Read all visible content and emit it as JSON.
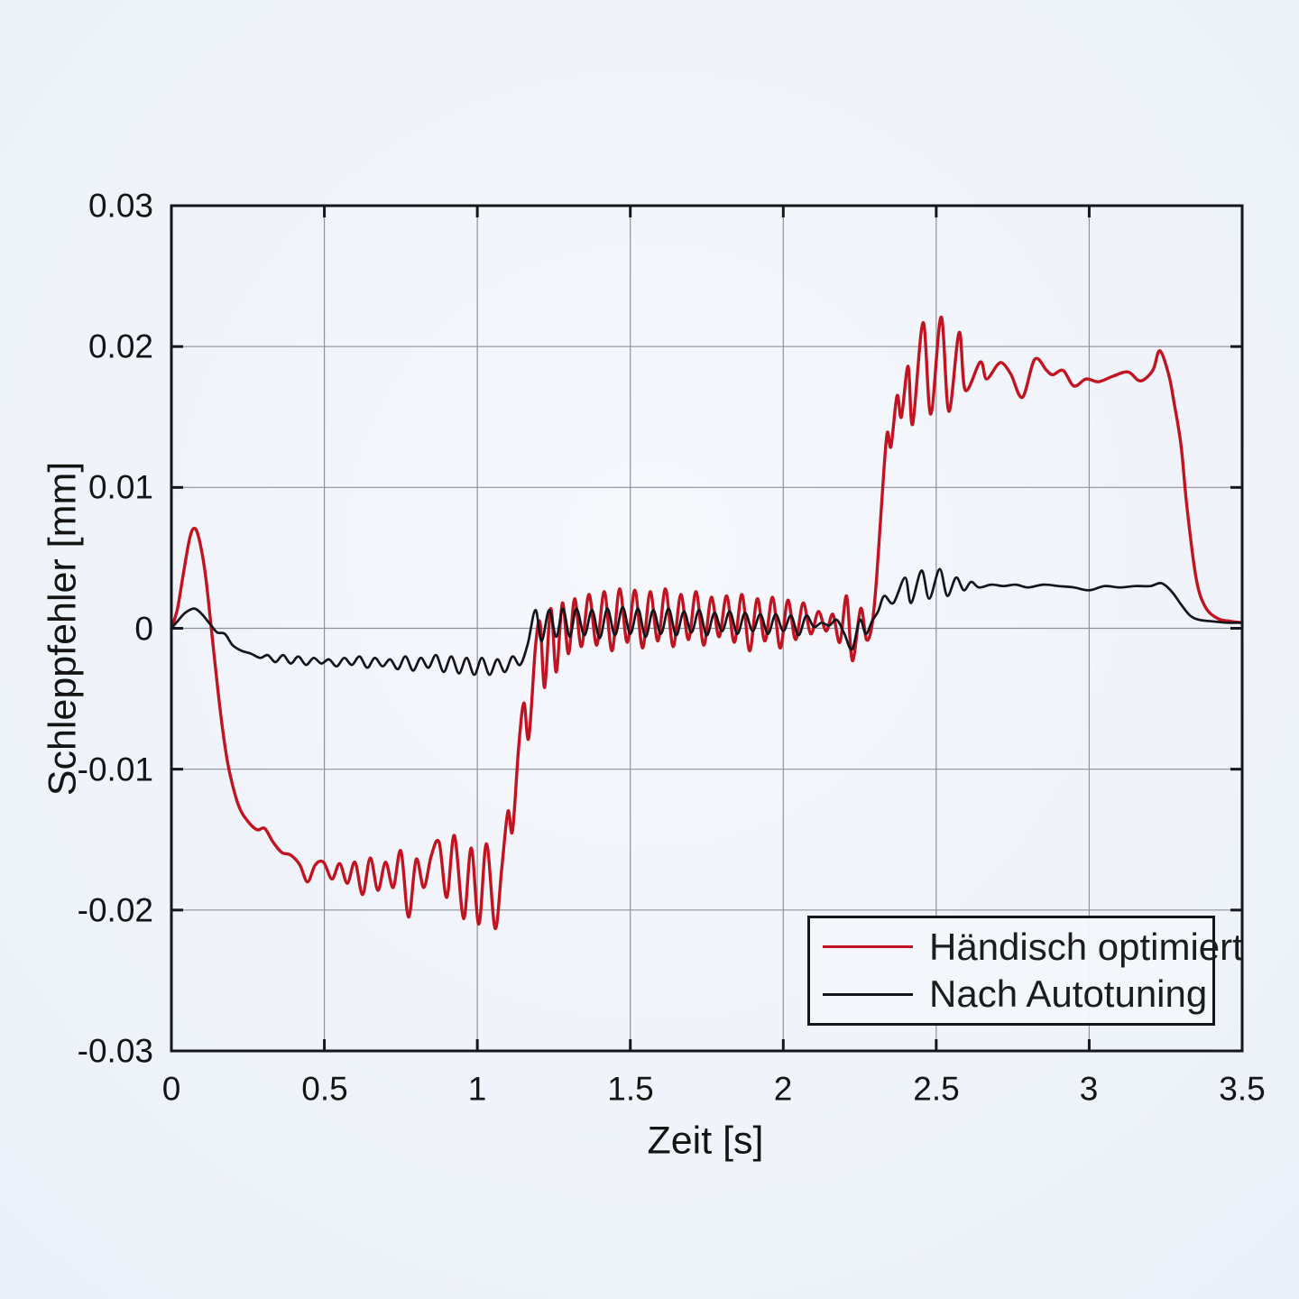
{
  "chart_data": {
    "type": "line",
    "title": "",
    "xlabel": "Zeit [s]",
    "ylabel": "Schleppfehler [mm]",
    "xlim": [
      0,
      3.5
    ],
    "ylim": [
      -0.03,
      0.03
    ],
    "xticks": [
      0,
      0.5,
      1,
      1.5,
      2,
      2.5,
      3,
      3.5
    ],
    "xtick_labels": [
      "0",
      "0.5",
      "1",
      "1.5",
      "2",
      "2.5",
      "3",
      "3.5"
    ],
    "yticks": [
      0.03,
      0.02,
      0.01,
      0,
      -0.01,
      -0.02,
      -0.03
    ],
    "ytick_labels": [
      "0.03",
      "0.02",
      "0.01",
      "0",
      "-0.01",
      "-0.02",
      "-0.03"
    ],
    "grid": true,
    "legend_position": "bottom-right",
    "axis_color": "#16161b",
    "grid_color": "#8d939c",
    "series": [
      {
        "name": "Händisch optimiert",
        "color": "#c11320",
        "points": [
          [
            0,
            0
          ],
          [
            0.02,
            0.0014
          ],
          [
            0.04,
            0.004
          ],
          [
            0.06,
            0.0064
          ],
          [
            0.075,
            0.0071
          ],
          [
            0.09,
            0.0064
          ],
          [
            0.11,
            0.004
          ],
          [
            0.13,
            0.0001
          ],
          [
            0.15,
            -0.004
          ],
          [
            0.17,
            -0.0076
          ],
          [
            0.19,
            -0.0102
          ],
          [
            0.22,
            -0.0126
          ],
          [
            0.25,
            -0.0137
          ],
          [
            0.28,
            -0.0143
          ],
          [
            0.305,
            -0.0142
          ],
          [
            0.33,
            -0.0151
          ],
          [
            0.36,
            -0.0159
          ],
          [
            0.39,
            -0.0161
          ],
          [
            0.42,
            -0.0168
          ],
          [
            0.445,
            -0.018
          ],
          [
            0.47,
            -0.0168
          ],
          [
            0.497,
            -0.0166
          ],
          [
            0.525,
            -0.0178
          ],
          [
            0.55,
            -0.0167
          ],
          [
            0.575,
            -0.0181
          ],
          [
            0.6,
            -0.0166
          ],
          [
            0.625,
            -0.0189
          ],
          [
            0.65,
            -0.0163
          ],
          [
            0.675,
            -0.0186
          ],
          [
            0.7,
            -0.0166
          ],
          [
            0.725,
            -0.0184
          ],
          [
            0.75,
            -0.0158
          ],
          [
            0.775,
            -0.0205
          ],
          [
            0.8,
            -0.0164
          ],
          [
            0.825,
            -0.0184
          ],
          [
            0.85,
            -0.0161
          ],
          [
            0.875,
            -0.0152
          ],
          [
            0.9,
            -0.0191
          ],
          [
            0.925,
            -0.0147
          ],
          [
            0.955,
            -0.0206
          ],
          [
            0.98,
            -0.0156
          ],
          [
            1.005,
            -0.021
          ],
          [
            1.03,
            -0.0153
          ],
          [
            1.058,
            -0.0213
          ],
          [
            1.08,
            -0.017
          ],
          [
            1.1,
            -0.013
          ],
          [
            1.115,
            -0.0144
          ],
          [
            1.135,
            -0.0085
          ],
          [
            1.152,
            -0.0053
          ],
          [
            1.168,
            -0.0078
          ],
          [
            1.19,
            -0.0013
          ],
          [
            1.205,
            0.0004
          ],
          [
            1.22,
            -0.0042
          ],
          [
            1.24,
            0.0014
          ],
          [
            1.258,
            -0.0031
          ],
          [
            1.278,
            0.0018
          ],
          [
            1.298,
            -0.0018
          ],
          [
            1.318,
            0.0021
          ],
          [
            1.34,
            -0.0013
          ],
          [
            1.365,
            0.0024
          ],
          [
            1.39,
            -0.0012
          ],
          [
            1.415,
            0.0026
          ],
          [
            1.44,
            -0.0016
          ],
          [
            1.465,
            0.0028
          ],
          [
            1.49,
            -0.001
          ],
          [
            1.515,
            0.0027
          ],
          [
            1.54,
            -0.0014
          ],
          [
            1.565,
            0.0026
          ],
          [
            1.59,
            -0.0009
          ],
          [
            1.615,
            0.0028
          ],
          [
            1.64,
            -0.0013
          ],
          [
            1.665,
            0.0024
          ],
          [
            1.69,
            -0.0008
          ],
          [
            1.715,
            0.0026
          ],
          [
            1.74,
            -0.0012
          ],
          [
            1.765,
            0.0022
          ],
          [
            1.79,
            -0.0006
          ],
          [
            1.815,
            0.0023
          ],
          [
            1.84,
            -0.001
          ],
          [
            1.865,
            0.0024
          ],
          [
            1.89,
            -0.0016
          ],
          [
            1.915,
            0.0021
          ],
          [
            1.94,
            -0.0009
          ],
          [
            1.965,
            0.0022
          ],
          [
            1.99,
            -0.0014
          ],
          [
            2.015,
            0.002
          ],
          [
            2.04,
            -0.0008
          ],
          [
            2.065,
            0.0018
          ],
          [
            2.09,
            -0.0004
          ],
          [
            2.115,
            0.0012
          ],
          [
            2.14,
            -0.0002
          ],
          [
            2.162,
            0.001
          ],
          [
            2.185,
            -0.001
          ],
          [
            2.207,
            0.0023
          ],
          [
            2.226,
            -0.0023
          ],
          [
            2.253,
            0.0014
          ],
          [
            2.272,
            -0.0008
          ],
          [
            2.29,
            0.0002
          ],
          [
            2.305,
            0.0035
          ],
          [
            2.322,
            0.009
          ],
          [
            2.339,
            0.0138
          ],
          [
            2.352,
            0.0129
          ],
          [
            2.372,
            0.0165
          ],
          [
            2.386,
            0.015
          ],
          [
            2.408,
            0.0186
          ],
          [
            2.423,
            0.0145
          ],
          [
            2.457,
            0.0217
          ],
          [
            2.482,
            0.0152
          ],
          [
            2.516,
            0.0221
          ],
          [
            2.541,
            0.0154
          ],
          [
            2.575,
            0.021
          ],
          [
            2.595,
            0.0169
          ],
          [
            2.644,
            0.0189
          ],
          [
            2.664,
            0.0177
          ],
          [
            2.7,
            0.0187
          ],
          [
            2.718,
            0.0188
          ],
          [
            2.745,
            0.018
          ],
          [
            2.782,
            0.0164
          ],
          [
            2.822,
            0.0191
          ],
          [
            2.861,
            0.0183
          ],
          [
            2.881,
            0.018
          ],
          [
            2.915,
            0.0183
          ],
          [
            2.95,
            0.0172
          ],
          [
            2.99,
            0.0177
          ],
          [
            3.03,
            0.0175
          ],
          [
            3.078,
            0.0179
          ],
          [
            3.127,
            0.0182
          ],
          [
            3.16,
            0.0176
          ],
          [
            3.182,
            0.0177
          ],
          [
            3.21,
            0.0184
          ],
          [
            3.231,
            0.0197
          ],
          [
            3.26,
            0.018
          ],
          [
            3.276,
            0.0162
          ],
          [
            3.3,
            0.013
          ],
          [
            3.32,
            0.0085
          ],
          [
            3.35,
            0.0035
          ],
          [
            3.38,
            0.0015
          ],
          [
            3.42,
            0.0007
          ],
          [
            3.46,
            0.0005
          ],
          [
            3.5,
            0.0004
          ]
        ]
      },
      {
        "name": "Nach Autotuning",
        "color": "#14141a",
        "points": [
          [
            0,
            0
          ],
          [
            0.02,
            0.0005
          ],
          [
            0.045,
            0.0011
          ],
          [
            0.075,
            0.0014
          ],
          [
            0.1,
            0.001
          ],
          [
            0.13,
            0.0002
          ],
          [
            0.15,
            -0.0003
          ],
          [
            0.175,
            -0.0004
          ],
          [
            0.2,
            -0.0012
          ],
          [
            0.23,
            -0.0016
          ],
          [
            0.26,
            -0.0018
          ],
          [
            0.29,
            -0.0021
          ],
          [
            0.315,
            -0.0019
          ],
          [
            0.34,
            -0.0024
          ],
          [
            0.365,
            -0.0019
          ],
          [
            0.39,
            -0.0025
          ],
          [
            0.415,
            -0.002
          ],
          [
            0.44,
            -0.0026
          ],
          [
            0.465,
            -0.0021
          ],
          [
            0.49,
            -0.0025
          ],
          [
            0.515,
            -0.0022
          ],
          [
            0.54,
            -0.0027
          ],
          [
            0.565,
            -0.0021
          ],
          [
            0.59,
            -0.0026
          ],
          [
            0.615,
            -0.002
          ],
          [
            0.64,
            -0.0028
          ],
          [
            0.665,
            -0.0021
          ],
          [
            0.69,
            -0.0027
          ],
          [
            0.715,
            -0.0022
          ],
          [
            0.74,
            -0.0029
          ],
          [
            0.765,
            -0.002
          ],
          [
            0.79,
            -0.003
          ],
          [
            0.815,
            -0.0021
          ],
          [
            0.84,
            -0.0028
          ],
          [
            0.865,
            -0.0019
          ],
          [
            0.89,
            -0.0031
          ],
          [
            0.915,
            -0.002
          ],
          [
            0.94,
            -0.0032
          ],
          [
            0.965,
            -0.0021
          ],
          [
            0.99,
            -0.0033
          ],
          [
            1.015,
            -0.0021
          ],
          [
            1.04,
            -0.0033
          ],
          [
            1.065,
            -0.0022
          ],
          [
            1.09,
            -0.0031
          ],
          [
            1.115,
            -0.002
          ],
          [
            1.14,
            -0.0026
          ],
          [
            1.165,
            -0.0011
          ],
          [
            1.19,
            0.0013
          ],
          [
            1.21,
            -0.0009
          ],
          [
            1.235,
            0.0013
          ],
          [
            1.258,
            -0.0006
          ],
          [
            1.28,
            0.0014
          ],
          [
            1.302,
            -0.0006
          ],
          [
            1.324,
            0.0014
          ],
          [
            1.35,
            -0.0005
          ],
          [
            1.375,
            0.0013
          ],
          [
            1.4,
            -0.0007
          ],
          [
            1.425,
            0.0014
          ],
          [
            1.45,
            -0.0005
          ],
          [
            1.475,
            0.0015
          ],
          [
            1.5,
            -0.0004
          ],
          [
            1.525,
            0.0014
          ],
          [
            1.55,
            -0.0006
          ],
          [
            1.575,
            0.0013
          ],
          [
            1.6,
            -0.0004
          ],
          [
            1.625,
            0.0014
          ],
          [
            1.65,
            -0.0005
          ],
          [
            1.675,
            0.0012
          ],
          [
            1.7,
            -0.0003
          ],
          [
            1.725,
            0.0013
          ],
          [
            1.75,
            -0.0005
          ],
          [
            1.775,
            0.0011
          ],
          [
            1.8,
            -0.0002
          ],
          [
            1.825,
            0.0012
          ],
          [
            1.85,
            -0.0004
          ],
          [
            1.875,
            0.0011
          ],
          [
            1.9,
            -0.0002
          ],
          [
            1.925,
            0.001
          ],
          [
            1.95,
            -0.0004
          ],
          [
            1.975,
            0.001
          ],
          [
            2.0,
            -0.0002
          ],
          [
            2.025,
            0.0009
          ],
          [
            2.05,
            -0.0005
          ],
          [
            2.075,
            0.0009
          ],
          [
            2.1,
            0.0001
          ],
          [
            2.125,
            0.0004
          ],
          [
            2.15,
            0.0002
          ],
          [
            2.175,
            0.0006
          ],
          [
            2.2,
            -0.0004
          ],
          [
            2.225,
            -0.0015
          ],
          [
            2.25,
            0.0006
          ],
          [
            2.27,
            -0.0004
          ],
          [
            2.29,
            0.0005
          ],
          [
            2.31,
            0.0012
          ],
          [
            2.33,
            0.0023
          ],
          [
            2.36,
            0.0018
          ],
          [
            2.398,
            0.0036
          ],
          [
            2.418,
            0.0018
          ],
          [
            2.452,
            0.0041
          ],
          [
            2.477,
            0.0021
          ],
          [
            2.511,
            0.0042
          ],
          [
            2.536,
            0.0023
          ],
          [
            2.565,
            0.0036
          ],
          [
            2.59,
            0.0027
          ],
          [
            2.614,
            0.0033
          ],
          [
            2.64,
            0.0029
          ],
          [
            2.68,
            0.0031
          ],
          [
            2.72,
            0.003
          ],
          [
            2.76,
            0.0031
          ],
          [
            2.8,
            0.0029
          ],
          [
            2.85,
            0.0031
          ],
          [
            2.9,
            0.003
          ],
          [
            2.95,
            0.0029
          ],
          [
            3.0,
            0.0027
          ],
          [
            3.05,
            0.003
          ],
          [
            3.1,
            0.0029
          ],
          [
            3.15,
            0.003
          ],
          [
            3.2,
            0.003
          ],
          [
            3.236,
            0.0032
          ],
          [
            3.27,
            0.0026
          ],
          [
            3.3,
            0.0017
          ],
          [
            3.33,
            0.0009
          ],
          [
            3.36,
            0.0006
          ],
          [
            3.4,
            0.0005
          ],
          [
            3.45,
            0.0004
          ],
          [
            3.5,
            0.0004
          ]
        ]
      }
    ]
  }
}
